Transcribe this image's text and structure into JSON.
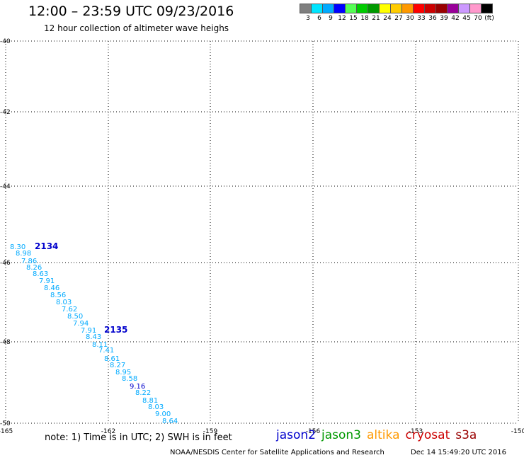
{
  "header": {
    "title": "12:00 – 23:59 UTC 09/23/2016",
    "subtitle": "12 hour collection of altimeter wave heighs"
  },
  "legend": {
    "colors": [
      "#7f7f7f",
      "#00e5ff",
      "#00aaff",
      "#0000ff",
      "#55ff55",
      "#00cc00",
      "#009900",
      "#ffff00",
      "#ffcc00",
      "#ff9900",
      "#ff0000",
      "#cc0000",
      "#990000",
      "#990099",
      "#cc99ff",
      "#ff99cc",
      "#000000"
    ],
    "labels": [
      "3",
      "6",
      "9",
      "12",
      "15",
      "18",
      "21",
      "24",
      "27",
      "30",
      "33",
      "36",
      "39",
      "42",
      "45",
      "70",
      "(ft)"
    ]
  },
  "map": {
    "lat_ticks": [
      "-40",
      "-42",
      "-44",
      "-46",
      "-48",
      "-50"
    ],
    "lon_ticks": [
      "-165",
      "-162",
      "-159",
      "-156",
      "-153",
      "-150"
    ],
    "passes": [
      {
        "label": "2134",
        "color": "#0000cc"
      },
      {
        "label": "2135",
        "color": "#0000cc"
      }
    ],
    "swh_points": [
      {
        "value": "8.30",
        "color": "#00aaff"
      },
      {
        "value": "8.98",
        "color": "#00aaff"
      },
      {
        "value": "7.86",
        "color": "#00aaff"
      },
      {
        "value": "8.26",
        "color": "#00aaff"
      },
      {
        "value": "8.63",
        "color": "#00aaff"
      },
      {
        "value": "7.91",
        "color": "#00aaff"
      },
      {
        "value": "8.46",
        "color": "#00aaff"
      },
      {
        "value": "8.56",
        "color": "#00aaff"
      },
      {
        "value": "8.03",
        "color": "#00aaff"
      },
      {
        "value": "7.62",
        "color": "#00aaff"
      },
      {
        "value": "8.50",
        "color": "#00aaff"
      },
      {
        "value": "7.94",
        "color": "#00aaff"
      },
      {
        "value": "7.91",
        "color": "#00aaff"
      },
      {
        "value": "8.43",
        "color": "#00aaff"
      },
      {
        "value": "8.11",
        "color": "#00aaff"
      },
      {
        "value": "7.41",
        "color": "#00aaff"
      },
      {
        "value": "8.61",
        "color": "#00aaff"
      },
      {
        "value": "8.27",
        "color": "#00aaff"
      },
      {
        "value": "8.95",
        "color": "#00aaff"
      },
      {
        "value": "8.58",
        "color": "#00aaff"
      },
      {
        "value": "9.16",
        "color": "#0000cc"
      },
      {
        "value": "8.22",
        "color": "#00aaff"
      },
      {
        "value": "8.81",
        "color": "#00aaff"
      },
      {
        "value": "8.03",
        "color": "#00aaff"
      },
      {
        "value": "9.00",
        "color": "#00aaff"
      },
      {
        "value": "8.64",
        "color": "#00aaff"
      }
    ]
  },
  "footer": {
    "note": "note: 1) Time is in UTC; 2) SWH is in feet",
    "satellites": [
      {
        "name": "jason2",
        "color": "#0000cc"
      },
      {
        "name": "jason3",
        "color": "#009900"
      },
      {
        "name": "altika",
        "color": "#ff9900"
      },
      {
        "name": "cryosat",
        "color": "#cc0000"
      },
      {
        "name": "s3a",
        "color": "#990000"
      }
    ],
    "credit": "NOAA/NESDIS Center for Satellite Applications and Research",
    "timestamp": "Dec 14 15:49:20 UTC 2016"
  }
}
